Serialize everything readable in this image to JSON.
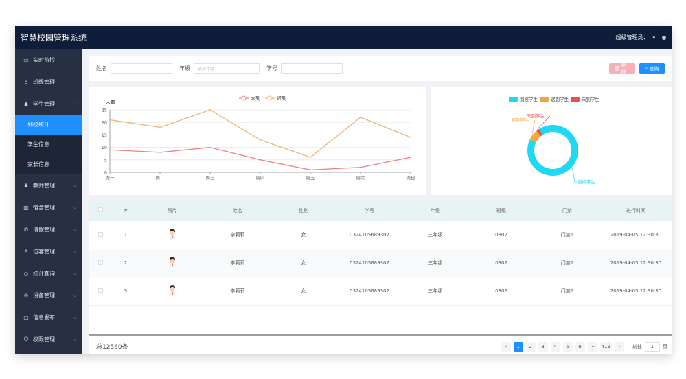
{
  "app_title": "智慧校园管理系统",
  "header": {
    "user_label": "超级管理员：",
    "caret": "▾"
  },
  "sidebar": {
    "items": [
      {
        "label": "实时监控",
        "icon": "monitor-icon",
        "glyph": "▭"
      },
      {
        "label": "班级管理",
        "icon": "home-icon",
        "glyph": "⌂"
      },
      {
        "label": "学生管理",
        "icon": "user-icon",
        "glyph": "♟",
        "expanded": true,
        "children": [
          {
            "label": "到校统计",
            "active": true
          },
          {
            "label": "学生信息"
          },
          {
            "label": "家长信息"
          }
        ]
      },
      {
        "label": "教师管理",
        "icon": "teacher-icon",
        "glyph": "♟"
      },
      {
        "label": "宿舍管理",
        "icon": "building-icon",
        "glyph": "▥"
      },
      {
        "label": "请假管理",
        "icon": "phone-icon",
        "glyph": "✆"
      },
      {
        "label": "访客管理",
        "icon": "visitor-icon",
        "glyph": "♙"
      },
      {
        "label": "统计查询",
        "icon": "search-icon",
        "glyph": "○"
      },
      {
        "label": "设备管理",
        "icon": "gear-icon",
        "glyph": "⚙"
      },
      {
        "label": "信息发布",
        "icon": "message-icon",
        "glyph": "▢"
      },
      {
        "label": "权限管理",
        "icon": "power-icon",
        "glyph": "⏻"
      }
    ]
  },
  "filter": {
    "name_label": "姓名",
    "grade_label": "年级",
    "grade_placeholder": "选择年级",
    "student_no_label": "学号",
    "delete_label": "删除",
    "search_label": "查询"
  },
  "line_chart": {
    "chart_data": {
      "type": "line",
      "categories": [
        "周一",
        "周二",
        "周三",
        "周四",
        "周五",
        "周六",
        "周日"
      ],
      "series": [
        {
          "name": "未到",
          "color": "#f07f82",
          "values": [
            9,
            8,
            10,
            5,
            1,
            2,
            6
          ]
        },
        {
          "name": "迟到",
          "color": "#f2b272",
          "values": [
            21,
            18,
            25,
            13,
            6,
            22,
            14
          ]
        }
      ],
      "ylabel": "人数",
      "ylim": [
        0,
        25
      ],
      "yticks": [
        0,
        5,
        10,
        15,
        20,
        25
      ],
      "grid": true,
      "legend": "top"
    }
  },
  "donut_chart": {
    "chart_data": {
      "type": "pie",
      "categories": [
        "到校学生",
        "迟到学生",
        "未到学生"
      ],
      "values": [
        91,
        7,
        2
      ],
      "colors": [
        "#1fd8f5",
        "#f0a93a",
        "#f0504d"
      ],
      "legend": "top",
      "donut": true
    }
  },
  "table": {
    "headers": [
      "#",
      "照片",
      "姓名",
      "性别",
      "学号",
      "年级",
      "班级",
      "门禁",
      "进行时间"
    ],
    "rows": [
      {
        "index": "1",
        "name": "李莉莉",
        "gender": "女",
        "student_no": "0324105689302",
        "grade": "三年级",
        "class": "0302",
        "gate": "门禁1",
        "time": "2019-04-05 12:30:30"
      },
      {
        "index": "2",
        "name": "李莉莉",
        "gender": "女",
        "student_no": "0324105689302",
        "grade": "三年级",
        "class": "0302",
        "gate": "门禁1",
        "time": "2019-04-05 12:30:30"
      },
      {
        "index": "3",
        "name": "李莉莉",
        "gender": "女",
        "student_no": "0324105689302",
        "grade": "三年级",
        "class": "0302",
        "gate": "门禁1",
        "time": "2019-04-05 12:30:30"
      }
    ]
  },
  "pagination": {
    "total": "总12560条",
    "prev": "‹",
    "next": "›",
    "pages": [
      "1",
      "2",
      "3",
      "4",
      "5",
      "6",
      "···",
      "419"
    ],
    "current": "1",
    "goto_label": "前往",
    "goto_value": "1",
    "page_unit": "页"
  }
}
